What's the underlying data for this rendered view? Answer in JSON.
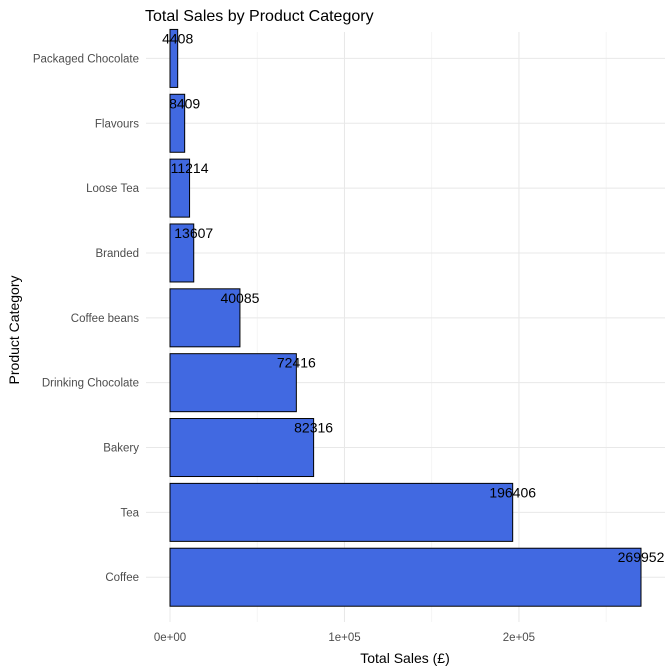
{
  "chart_data": {
    "type": "bar",
    "orientation": "horizontal",
    "title": "Total Sales by Product Category",
    "xlabel": "Total Sales (£)",
    "ylabel": "Product Category",
    "categories": [
      "Coffee",
      "Tea",
      "Bakery",
      "Drinking Chocolate",
      "Coffee beans",
      "Branded",
      "Loose Tea",
      "Flavours",
      "Packaged Chocolate"
    ],
    "values": [
      269952,
      196406,
      82316,
      72416,
      40085,
      13607,
      11214,
      8409,
      4408
    ],
    "data_labels": [
      "269952",
      "196406",
      "82316",
      "72416",
      "40085",
      "13607",
      "11214",
      "8409",
      "4408"
    ],
    "x_ticks": [
      0,
      100000,
      200000
    ],
    "x_tick_labels": [
      "0e+00",
      "1e+05",
      "2e+05"
    ],
    "xlim": [
      0,
      269952
    ],
    "grid": true,
    "legend": "none",
    "colors": {
      "bar_fill": "#4169e1",
      "bar_stroke": "#000000"
    }
  }
}
